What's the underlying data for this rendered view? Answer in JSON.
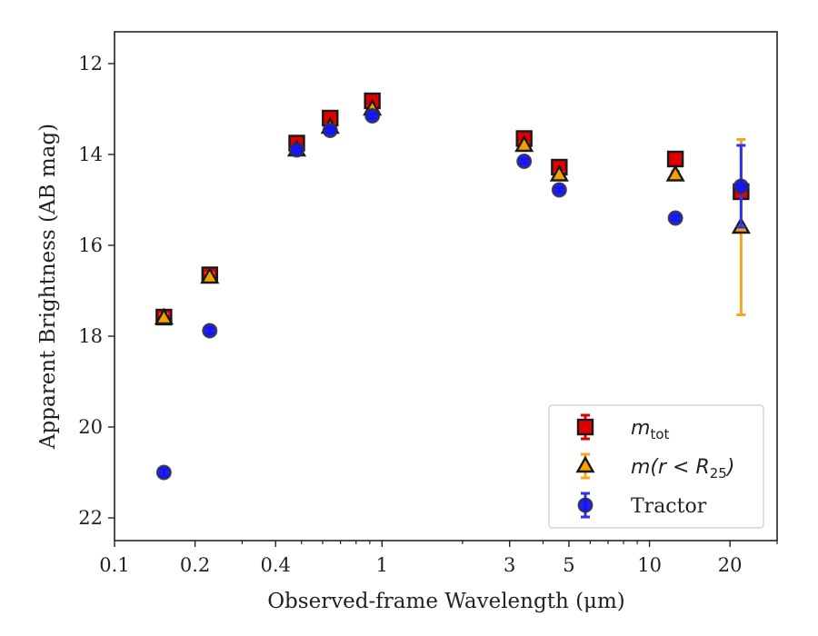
{
  "chart_data": {
    "type": "scatter",
    "xlabel": "Observed-frame Wavelength (μm)",
    "ylabel": "Apparent Brightness (AB mag)",
    "xscale": "log",
    "xlim": [
      0.1,
      30
    ],
    "ylim": [
      22.5,
      11.3
    ],
    "y_inverted": true,
    "grid": false,
    "legend_position": "bottom-right",
    "x_ticks": [
      {
        "value": 0.1,
        "label": "0.1"
      },
      {
        "value": 0.2,
        "label": "0.2"
      },
      {
        "value": 0.4,
        "label": "0.4"
      },
      {
        "value": 1,
        "label": "1"
      },
      {
        "value": 3,
        "label": "3"
      },
      {
        "value": 5,
        "label": "5"
      },
      {
        "value": 10,
        "label": "10"
      },
      {
        "value": 20,
        "label": "20"
      }
    ],
    "x_minor_ticks": [
      0.3,
      0.5,
      0.6,
      0.7,
      0.8,
      0.9,
      2,
      4,
      6,
      7,
      8,
      9,
      30
    ],
    "y_ticks": [
      {
        "value": 12,
        "label": "12"
      },
      {
        "value": 14,
        "label": "14"
      },
      {
        "value": 16,
        "label": "16"
      },
      {
        "value": 18,
        "label": "18"
      },
      {
        "value": 20,
        "label": "20"
      },
      {
        "value": 22,
        "label": "22"
      }
    ],
    "series": [
      {
        "name": "m_tot",
        "legend_base": "m",
        "legend_sub": "tot",
        "legend_tail": "",
        "marker": "square",
        "color": "#e00000",
        "errcolor": "#e00000",
        "points": [
          {
            "x": 0.153,
            "y": 17.58,
            "err": 0.08
          },
          {
            "x": 0.227,
            "y": 16.65,
            "err": 0.08
          },
          {
            "x": 0.48,
            "y": 13.75,
            "err": 0.05
          },
          {
            "x": 0.64,
            "y": 13.2,
            "err": 0.05
          },
          {
            "x": 0.92,
            "y": 12.82,
            "err": 0.05
          },
          {
            "x": 3.4,
            "y": 13.65,
            "err": 0.05
          },
          {
            "x": 4.6,
            "y": 14.28,
            "err": 0.05
          },
          {
            "x": 12.5,
            "y": 14.1,
            "err": 0.06
          },
          {
            "x": 22,
            "y": 14.82,
            "err": 0.1
          }
        ]
      },
      {
        "name": "m(r<R_25)",
        "legend_base": "m(r < R",
        "legend_sub": "25",
        "legend_tail": ")",
        "marker": "triangle",
        "color": "#f5a000",
        "errcolor": "#f5a623",
        "points": [
          {
            "x": 0.153,
            "y": 17.6,
            "err": 0.08
          },
          {
            "x": 0.227,
            "y": 16.7,
            "err": 0.08
          },
          {
            "x": 0.48,
            "y": 13.9,
            "err": 0.05
          },
          {
            "x": 0.64,
            "y": 13.4,
            "err": 0.05
          },
          {
            "x": 0.92,
            "y": 13.0,
            "err": 0.05
          },
          {
            "x": 3.4,
            "y": 13.8,
            "err": 0.05
          },
          {
            "x": 4.6,
            "y": 14.45,
            "err": 0.06
          },
          {
            "x": 12.5,
            "y": 14.45,
            "err": 0.08
          },
          {
            "x": 22,
            "y": 15.6,
            "err": 1.93
          }
        ]
      },
      {
        "name": "Tractor",
        "legend_base": "Tractor",
        "legend_sub": "",
        "legend_tail": "",
        "marker": "circle",
        "color": "#1414f0",
        "errcolor": "#3030e8",
        "points": [
          {
            "x": 0.153,
            "y": 21.0,
            "err": 0.08
          },
          {
            "x": 0.227,
            "y": 17.88,
            "err": 0.06
          },
          {
            "x": 0.48,
            "y": 13.9,
            "err": 0.05
          },
          {
            "x": 0.64,
            "y": 13.47,
            "err": 0.05
          },
          {
            "x": 0.92,
            "y": 13.15,
            "err": 0.05
          },
          {
            "x": 3.4,
            "y": 14.15,
            "err": 0.05
          },
          {
            "x": 4.6,
            "y": 14.78,
            "err": 0.05
          },
          {
            "x": 12.5,
            "y": 15.4,
            "err": 0.05
          },
          {
            "x": 22,
            "y": 14.7,
            "err": 0.9
          }
        ]
      }
    ]
  }
}
